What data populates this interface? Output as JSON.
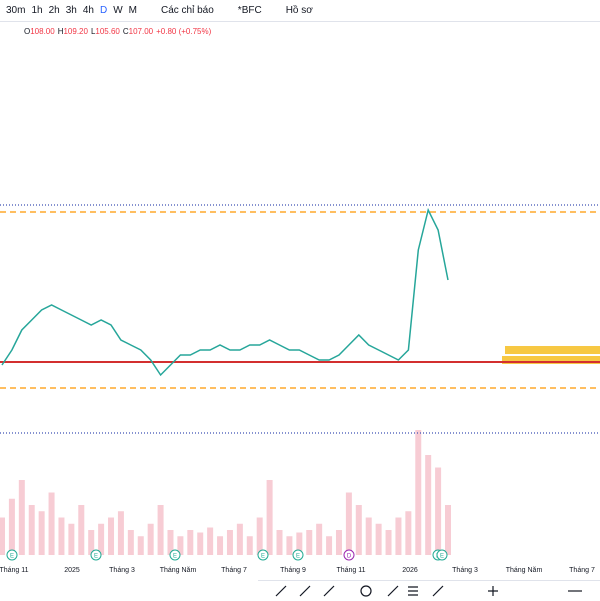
{
  "toolbar": {
    "intervals": [
      "30m",
      "1h",
      "2h",
      "3h",
      "4h",
      "D",
      "W",
      "M"
    ],
    "indicators": "Các chỉ báo",
    "symbol": "*BFC",
    "profile": "Hồ sơ"
  },
  "legend": {
    "ohlc": [
      {
        "label": "O",
        "value": "108.00"
      },
      {
        "label": "H",
        "value": "109.20"
      },
      {
        "label": "L",
        "value": "105.60"
      },
      {
        "label": "C",
        "value": "107.00"
      }
    ],
    "change": "+0.80 (+0.75%)"
  },
  "chart_data": {
    "type": "line",
    "color": "#26a69a",
    "ylim": [
      73,
      155
    ],
    "values": [
      90,
      93,
      97,
      99,
      101,
      102,
      101,
      100,
      99,
      98,
      99,
      98,
      95,
      94,
      93,
      91,
      88,
      90,
      92,
      92,
      93,
      93,
      94,
      93,
      93,
      94,
      94,
      95,
      94,
      93,
      93,
      92,
      91,
      91,
      92,
      94,
      96,
      94,
      93,
      92,
      91,
      93,
      113,
      121,
      117,
      107
    ],
    "levels": [
      {
        "value": 122,
        "color": "#3f51b5",
        "style": "dotted"
      },
      {
        "value": 120.6,
        "color": "#ff9800",
        "style": "dashed"
      },
      {
        "value": 90.6,
        "color": "#d32f2f",
        "style": "solid"
      },
      {
        "value": 85.4,
        "color": "#ff9800",
        "style": "dashed"
      },
      {
        "value": 76.4,
        "color": "#3f51b5",
        "style": "dotted"
      }
    ],
    "volume": {
      "color": "#f4b6c2",
      "ylim": [
        0,
        100
      ],
      "values": [
        30,
        45,
        60,
        40,
        35,
        50,
        30,
        25,
        40,
        20,
        25,
        30,
        35,
        20,
        15,
        25,
        40,
        20,
        15,
        20,
        18,
        22,
        15,
        20,
        25,
        15,
        30,
        60,
        20,
        15,
        18,
        20,
        25,
        15,
        20,
        50,
        40,
        30,
        25,
        20,
        30,
        35,
        100,
        80,
        70,
        40
      ]
    },
    "x_labels": [
      "Tháng 11",
      "2025",
      "Tháng 3",
      "Tháng Năm",
      "Tháng 7",
      "Tháng 9",
      "Tháng 11",
      "2026",
      "Tháng 3",
      "Tháng Năm",
      "Tháng 7"
    ],
    "events": [
      "E",
      "E",
      "E",
      "E",
      "E",
      "D",
      "E",
      "E"
    ]
  }
}
